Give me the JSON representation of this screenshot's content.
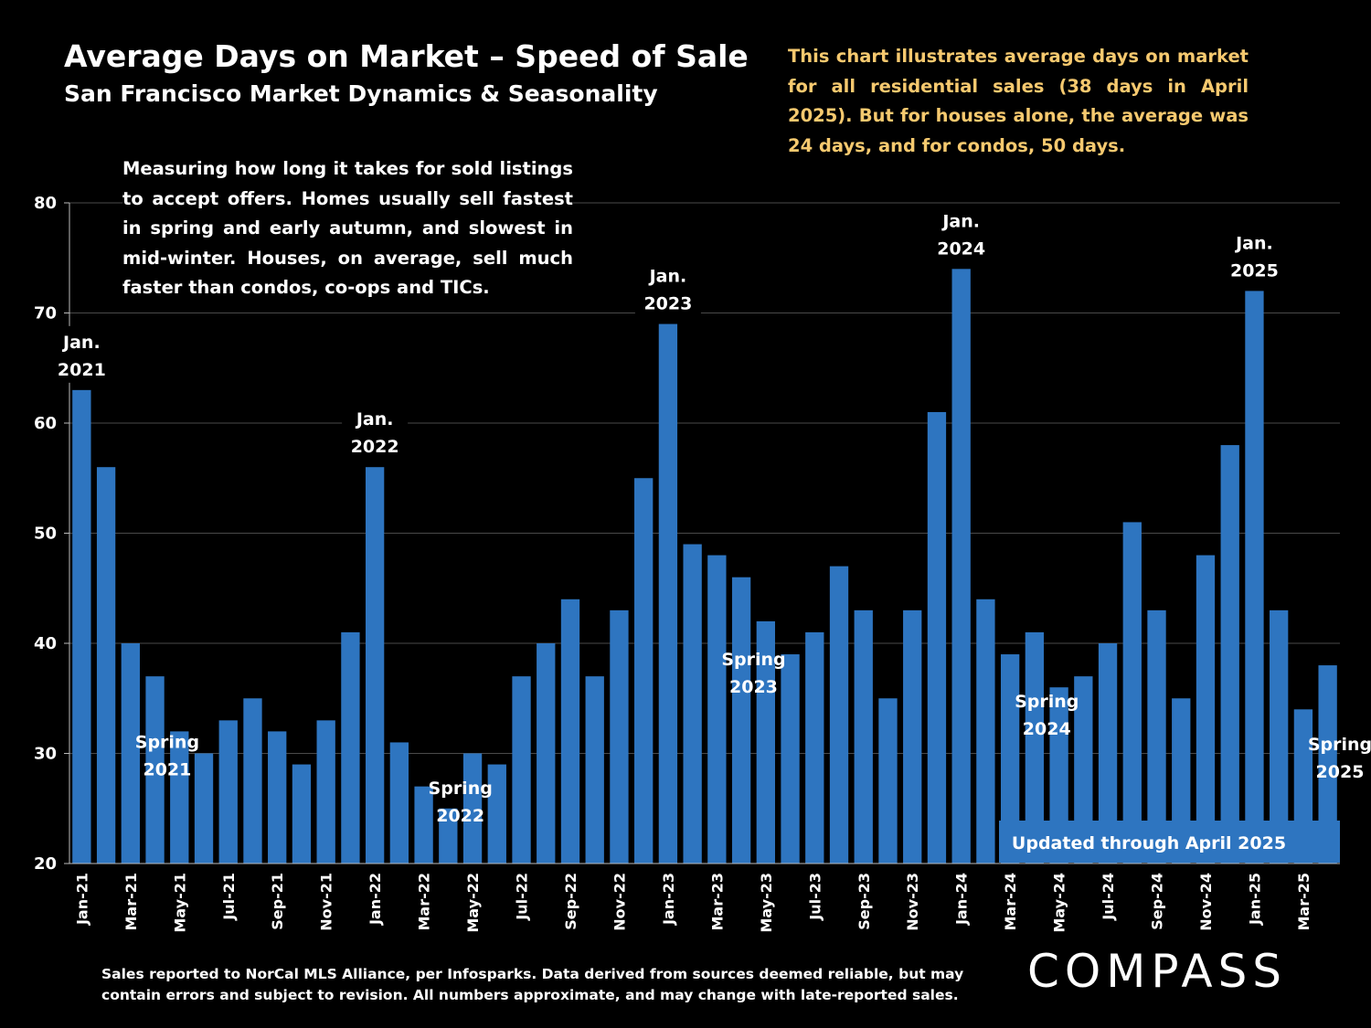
{
  "header": {
    "title": "Average Days on Market – Speed of Sale",
    "subtitle": "San Francisco Market Dynamics & Seasonality"
  },
  "notes": {
    "right": "This chart illustrates average days on market for all residential sales (38 days in April 2025). But for houses alone, the average was 24 days, and for condos, 50 days.",
    "left": "Measuring how long it takes for sold listings to accept offers. Homes usually sell fastest in spring and early autumn, and slowest in mid-winter. Houses, on average, sell much faster than condos, co-ops and TICs."
  },
  "footnote": "Sales reported to NorCal MLS Alliance, per Infosparks. Data derived from sources deemed reliable, but may contain errors and subject to revision. All numbers approximate, and may change with late-reported sales.",
  "logo": "COMPASS",
  "colors": {
    "bar": "#2e75c0",
    "grid": "#4a4a4a",
    "note_right": "#f6c96f",
    "background": "#000000"
  },
  "chart_data": {
    "type": "bar",
    "ylim": [
      20,
      80
    ],
    "yticks": [
      20,
      30,
      40,
      50,
      60,
      70,
      80
    ],
    "grid": true,
    "categories": [
      "Jan-21",
      "Feb-21",
      "Mar-21",
      "Apr-21",
      "May-21",
      "Jun-21",
      "Jul-21",
      "Aug-21",
      "Sep-21",
      "Oct-21",
      "Nov-21",
      "Dec-21",
      "Jan-22",
      "Feb-22",
      "Mar-22",
      "Apr-22",
      "May-22",
      "Jun-22",
      "Jul-22",
      "Aug-22",
      "Sep-22",
      "Oct-22",
      "Nov-22",
      "Dec-22",
      "Jan-23",
      "Feb-23",
      "Mar-23",
      "Apr-23",
      "May-23",
      "Jun-23",
      "Jul-23",
      "Aug-23",
      "Sep-23",
      "Oct-23",
      "Nov-23",
      "Dec-23",
      "Jan-24",
      "Feb-24",
      "Mar-24",
      "Apr-24",
      "May-24",
      "Jun-24",
      "Jul-24",
      "Aug-24",
      "Sep-24",
      "Oct-24",
      "Nov-24",
      "Dec-24",
      "Jan-25",
      "Feb-25",
      "Mar-25",
      "Apr-25"
    ],
    "values": [
      63,
      56,
      40,
      37,
      32,
      30,
      33,
      35,
      32,
      29,
      33,
      41,
      56,
      31,
      27,
      25,
      30,
      29,
      37,
      40,
      44,
      37,
      43,
      55,
      69,
      49,
      48,
      46,
      42,
      39,
      41,
      47,
      43,
      35,
      43,
      61,
      74,
      44,
      39,
      41,
      36,
      37,
      40,
      51,
      43,
      35,
      48,
      58,
      72,
      43,
      34,
      38
    ],
    "xtick_labels": [
      "Jan-21",
      "Mar-21",
      "May-21",
      "Jul-21",
      "Sep-21",
      "Nov-21",
      "Jan-22",
      "Mar-22",
      "May-22",
      "Jul-22",
      "Sep-22",
      "Nov-22",
      "Jan-23",
      "Mar-23",
      "May-23",
      "Jul-23",
      "Sep-23",
      "Nov-23",
      "Jan-24",
      "Mar-24",
      "May-24",
      "Jul-24",
      "Sep-24",
      "Nov-24",
      "Jan-25",
      "Mar-25"
    ],
    "annotations": [
      {
        "index": 0,
        "line1": "Jan.",
        "line2": "2021"
      },
      {
        "index": 12,
        "line1": "Jan.",
        "line2": "2022"
      },
      {
        "index": 24,
        "line1": "Jan.",
        "line2": "2023"
      },
      {
        "index": 36,
        "line1": "Jan.",
        "line2": "2024"
      },
      {
        "index": 48,
        "line1": "Jan.",
        "line2": "2025"
      },
      {
        "index": 3.5,
        "value": 28,
        "line1": "Spring",
        "line2": "2021"
      },
      {
        "index": 15.5,
        "value": 23.8,
        "line1": "Spring",
        "line2": "2022"
      },
      {
        "index": 27.5,
        "value": 35.5,
        "line1": "Spring",
        "line2": "2023"
      },
      {
        "index": 39.5,
        "value": 31.7,
        "line1": "Spring",
        "line2": "2024"
      },
      {
        "index": 51.5,
        "value": 27.8,
        "line1": "Spring",
        "line2": "2025"
      }
    ],
    "updated_label": "Updated through April 2025"
  }
}
